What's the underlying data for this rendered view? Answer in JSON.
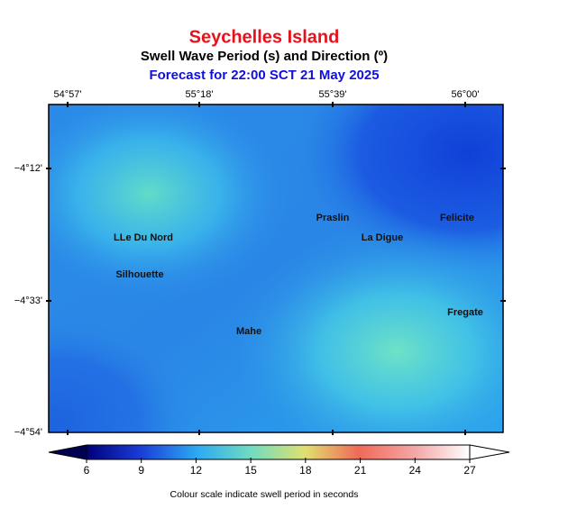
{
  "header": {
    "title": "Seychelles Island",
    "subtitle": "Swell Wave Period (s) and Direction (º)",
    "forecast": "Forecast for  22:00 SCT 21 May 2025"
  },
  "map": {
    "lon_labels": [
      "54°57'",
      "55°18'",
      "55°39'",
      "56°00'"
    ],
    "lat_labels": [
      "−4°12'",
      "−4°33'",
      "−4°54'"
    ],
    "places": [
      "LLe Du Nord",
      "Silhouette",
      "Praslin",
      "La Digue",
      "Felicite",
      "Mahe",
      "Fregate"
    ]
  },
  "colorbar": {
    "ticks": [
      6,
      9,
      12,
      15,
      18,
      21,
      24,
      27
    ],
    "caption": "Colour scale indicate swell period in seconds"
  }
}
